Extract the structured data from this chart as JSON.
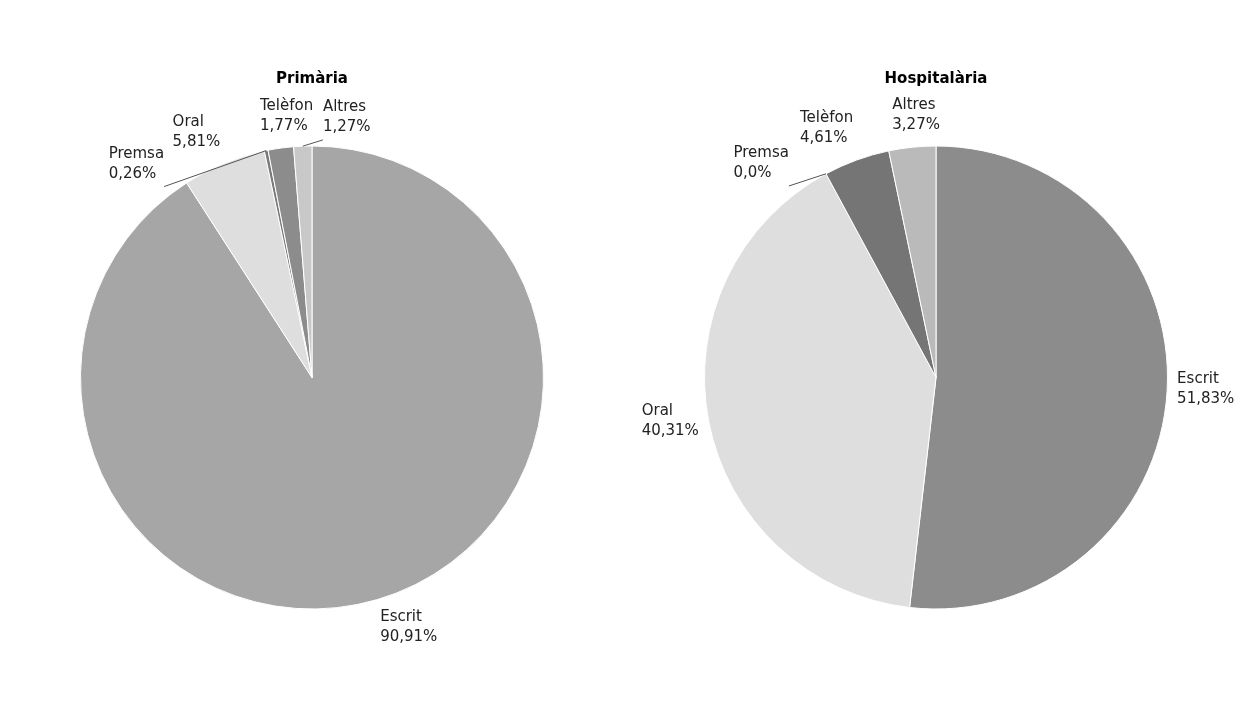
{
  "chart_data": [
    {
      "type": "pie",
      "title": "Primària",
      "categories": [
        "Escrit",
        "Oral",
        "Premsa",
        "Telèfon",
        "Altres"
      ],
      "values": [
        90.91,
        5.81,
        0.26,
        1.77,
        1.27
      ],
      "value_labels": [
        "90,91%",
        "5,81%",
        "0,26%",
        "1,77%",
        "1,27%"
      ],
      "colors": [
        "#a6a6a6",
        "#dedede",
        "#7a7a7a",
        "#8c8c8c",
        "#c8c8c8"
      ],
      "legend": false
    },
    {
      "type": "pie",
      "title": "Hospitalària",
      "categories": [
        "Escrit",
        "Oral",
        "Premsa",
        "Telèfon",
        "Altres"
      ],
      "values": [
        51.83,
        40.31,
        0.0,
        4.61,
        3.27
      ],
      "value_labels": [
        "51,83%",
        "40,31%",
        "0,0%",
        "4,61%",
        "3,27%"
      ],
      "colors": [
        "#8c8c8c",
        "#dedede",
        "#7a7a7a",
        "#757575",
        "#bababa"
      ],
      "legend": false
    }
  ]
}
